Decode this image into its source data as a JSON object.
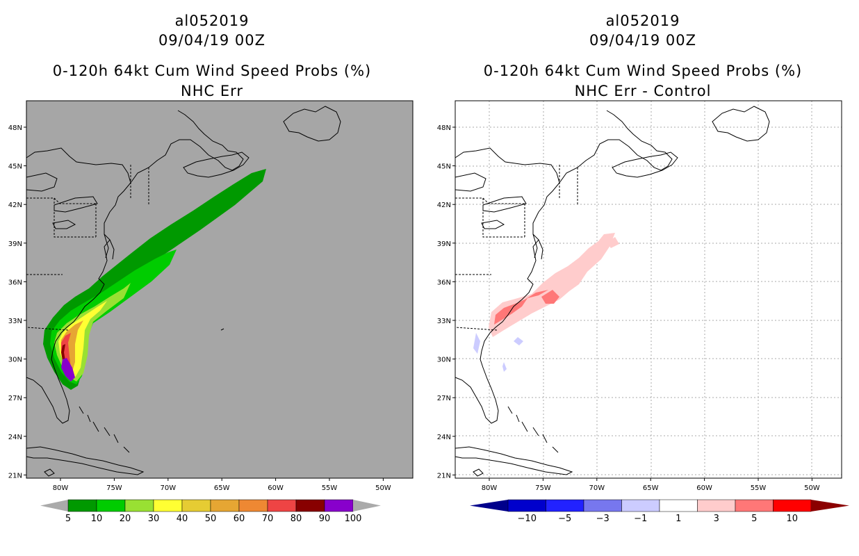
{
  "left_panel": {
    "storm_id": "al052019",
    "datetime": "09/04/19 00Z",
    "product": "0-120h 64kt Cum Wind Speed Probs (%)",
    "subtitle": "NHC Err",
    "background_color": "#a6a6a6",
    "colorbar": {
      "labels": [
        "5",
        "10",
        "20",
        "30",
        "40",
        "50",
        "60",
        "70",
        "80",
        "90",
        "100"
      ],
      "colors": [
        "#009900",
        "#00cc00",
        "#99e033",
        "#ffff33",
        "#e6cc33",
        "#e6a633",
        "#ee8833",
        "#ee4444",
        "#880000",
        "#8800cc"
      ],
      "end_color": "#aaaaaa"
    }
  },
  "right_panel": {
    "storm_id": "al052019",
    "datetime": "09/04/19 00Z",
    "product": "0-120h 64kt Cum Wind Speed Probs (%)",
    "subtitle": "NHC Err - Control",
    "background_color": "#ffffff",
    "colorbar": {
      "labels": [
        "-10",
        "-5",
        "-3",
        "-1",
        "1",
        "3",
        "5",
        "10"
      ],
      "colors": [
        "#0000cc",
        "#2222ff",
        "#7777ee",
        "#ccccff",
        "#ffffff",
        "#ffcccc",
        "#ff7777",
        "#ff0000"
      ],
      "low_end_color": "#00008b",
      "high_end_color": "#8b0000"
    }
  },
  "axes": {
    "lat_labels": [
      "48N",
      "45N",
      "42N",
      "39N",
      "36N",
      "33N",
      "30N",
      "27N",
      "24N",
      "21N"
    ],
    "lon_labels": [
      "80W",
      "75W",
      "70W",
      "65W",
      "60W",
      "55W",
      "50W"
    ]
  }
}
